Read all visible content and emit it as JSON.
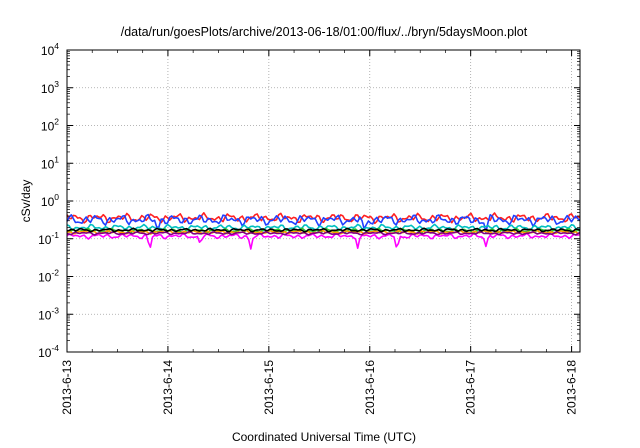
{
  "chart_data": {
    "type": "line",
    "title": "/data/run/goesPlots/archive/2013-06-18/01:00/flux/../bryn/5daysMoon.plot",
    "xlabel": "Coordinated Universal Time (UTC)",
    "ylabel": "cSv/day",
    "yscale": "log",
    "ylim": [
      0.0001,
      10000
    ],
    "y_ticks": [
      {
        "base": "10",
        "exp": "4",
        "value": 10000
      },
      {
        "base": "10",
        "exp": "3",
        "value": 1000
      },
      {
        "base": "10",
        "exp": "2",
        "value": 100
      },
      {
        "base": "10",
        "exp": "1",
        "value": 10
      },
      {
        "base": "10",
        "exp": "0",
        "value": 1
      },
      {
        "base": "10",
        "exp": "-1",
        "value": 0.1
      },
      {
        "base": "10",
        "exp": "-2",
        "value": 0.01
      },
      {
        "base": "10",
        "exp": "-3",
        "value": 0.001
      },
      {
        "base": "10",
        "exp": "-4",
        "value": 0.0001
      }
    ],
    "xlim": [
      "2013-06-13",
      "2013-06-18 02:00"
    ],
    "x_ticks": [
      "2013-6-13",
      "2013-6-14",
      "2013-6-15",
      "2013-6-16",
      "2013-6-17",
      "2013-6-18"
    ],
    "grid": true,
    "series": [
      {
        "color": "#ff00ff",
        "base": 0.118,
        "dips": [
          [
            0.82,
            0.045
          ],
          [
            1.82,
            0.05
          ],
          [
            2.88,
            0.055
          ],
          [
            3.27,
            0.04
          ],
          [
            4.15,
            0.06
          ],
          [
            1.32,
            0.07
          ],
          [
            5.3,
            0.08
          ]
        ],
        "wiggle": 0.12
      },
      {
        "color": "#ff2020",
        "base": 0.36,
        "dips": [],
        "wiggle": 0.22
      },
      {
        "color": "#2040ff",
        "base": 0.32,
        "dips": [
          [
            0.9,
            0.14
          ],
          [
            2.95,
            0.15
          ],
          [
            4.15,
            0.14
          ]
        ],
        "wiggle": 0.25
      },
      {
        "color": "#00c0c0",
        "base": 0.2,
        "dips": [],
        "wiggle": 0.14
      },
      {
        "color": "#30c030",
        "base": 0.165,
        "dips": [],
        "wiggle": 0.1
      },
      {
        "color": "#ffa000",
        "base": 0.15,
        "dips": [],
        "wiggle": 0.08
      },
      {
        "color": "#800080",
        "base": 0.14,
        "dips": [],
        "wiggle": 0.07
      },
      {
        "color": "#000000",
        "base": 0.17,
        "dips": [],
        "wiggle": 0.08
      }
    ]
  }
}
